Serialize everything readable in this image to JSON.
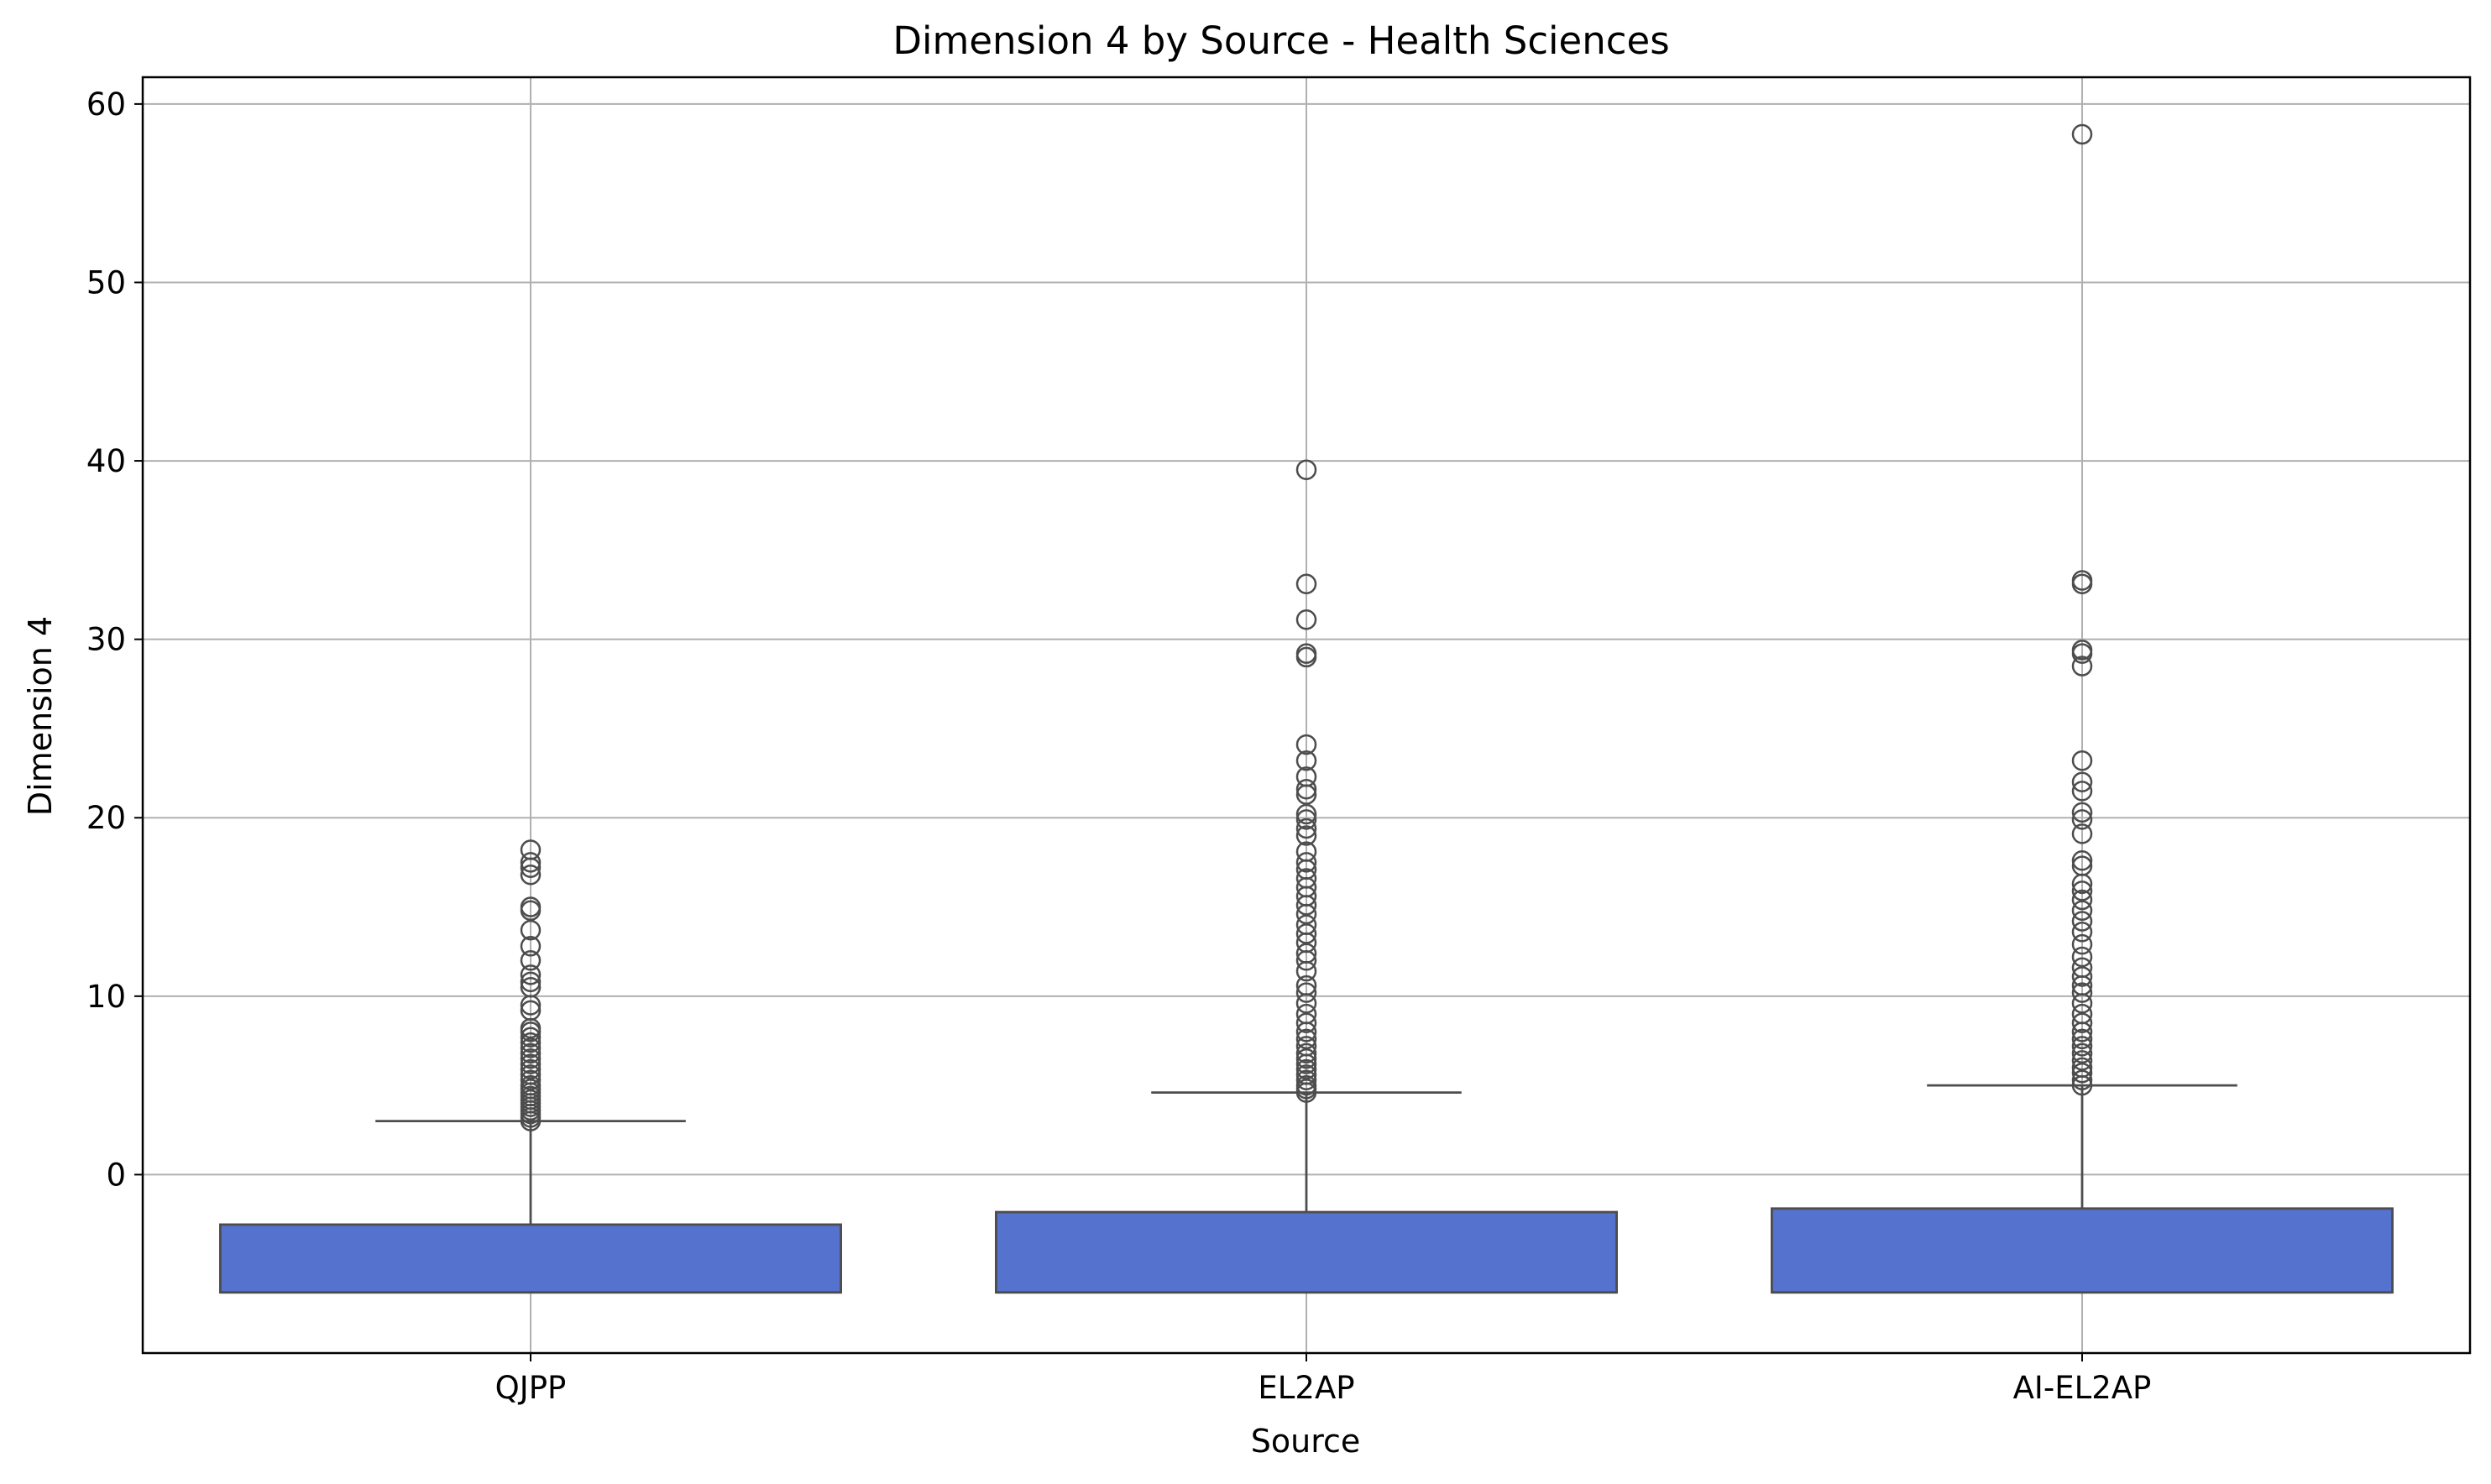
{
  "chart_data": {
    "type": "box",
    "title": "Dimension 4 by Source - Health Sciences",
    "xlabel": "Source",
    "ylabel": "Dimension 4",
    "categories": [
      "QJPP",
      "EL2AP",
      "AI-EL2AP"
    ],
    "y_ticks": [
      0,
      10,
      20,
      30,
      40,
      50,
      60
    ],
    "ylim": [
      -10,
      61.5
    ],
    "grid": true,
    "colors": {
      "box_fill": "#5572CE",
      "line": "#4D4D4D",
      "grid": "#B0B0B0",
      "frame": "#000000"
    },
    "boxes": [
      {
        "category": "QJPP",
        "q1": -6.6,
        "median": -6.6,
        "q3": -2.8,
        "whisker_low": -6.6,
        "whisker_high": 3.0,
        "outliers": [
          3.0,
          3.2,
          3.4,
          3.6,
          3.8,
          4.0,
          4.2,
          4.4,
          4.6,
          4.8,
          5.0,
          5.3,
          5.6,
          5.9,
          6.2,
          6.5,
          6.8,
          7.1,
          7.4,
          7.7,
          8.0,
          8.2,
          9.2,
          9.5,
          10.5,
          10.8,
          11.2,
          12.0,
          12.8,
          13.7,
          14.8,
          15.0,
          16.8,
          17.2,
          17.5,
          18.2
        ]
      },
      {
        "category": "EL2AP",
        "q1": -6.6,
        "median": -6.6,
        "q3": -2.1,
        "whisker_low": -6.6,
        "whisker_high": 4.6,
        "outliers": [
          4.6,
          4.8,
          5.0,
          5.3,
          5.6,
          5.9,
          6.2,
          6.5,
          6.8,
          7.2,
          7.6,
          8.0,
          8.5,
          9.0,
          9.6,
          10.2,
          10.6,
          11.4,
          12.0,
          12.4,
          13.0,
          13.5,
          14.0,
          14.6,
          15.1,
          15.6,
          16.1,
          16.6,
          17.1,
          17.5,
          18.1,
          19.0,
          19.4,
          19.9,
          20.2,
          21.3,
          21.6,
          22.3,
          23.2,
          24.1,
          29.0,
          29.2,
          31.1,
          33.1,
          39.5
        ]
      },
      {
        "category": "AI-EL2AP",
        "q1": -6.6,
        "median": -6.6,
        "q3": -1.9,
        "whisker_low": -6.6,
        "whisker_high": 5.0,
        "outliers": [
          5.0,
          5.3,
          5.7,
          6.0,
          6.4,
          6.8,
          7.2,
          7.6,
          8.0,
          8.5,
          9.0,
          9.6,
          10.2,
          10.6,
          11.1,
          11.6,
          12.2,
          12.9,
          13.6,
          14.2,
          14.8,
          15.4,
          15.9,
          16.3,
          17.3,
          17.6,
          19.1,
          19.9,
          20.3,
          21.5,
          22.0,
          23.2,
          28.5,
          29.2,
          29.4,
          33.1,
          33.3,
          58.3
        ]
      }
    ]
  }
}
